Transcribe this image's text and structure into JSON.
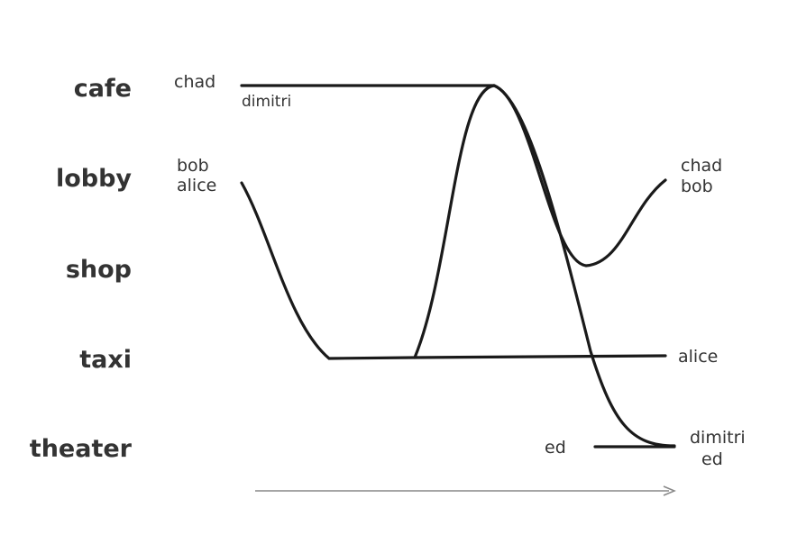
{
  "locations": [
    "cafe",
    "lobby",
    "shop",
    "taxi",
    "theater"
  ],
  "start_labels": [
    "chad",
    "dimitri",
    "bob",
    "alice",
    "ed"
  ],
  "end_labels": [
    "chad",
    "bob",
    "alice",
    "dimitri",
    "ed"
  ]
}
